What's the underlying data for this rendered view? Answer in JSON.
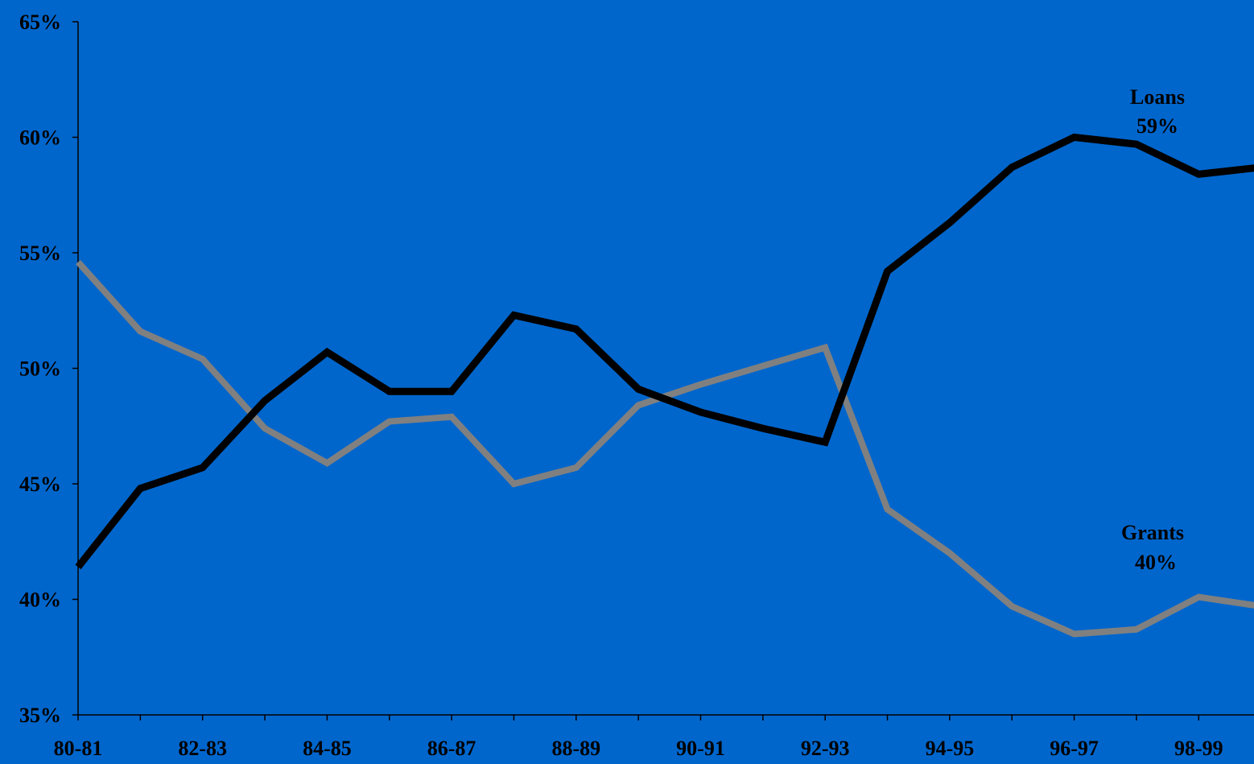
{
  "colors": {
    "background": "#0066CC",
    "axis": "#000000",
    "loans_line": "#000000",
    "grants_line": "#808080",
    "text": "#000000"
  },
  "chart_data": {
    "type": "line",
    "title": "",
    "xlabel": "",
    "ylabel": "",
    "x": [
      "80-81",
      "81-82",
      "82-83",
      "83-84",
      "84-85",
      "85-86",
      "86-87",
      "87-88",
      "88-89",
      "89-90",
      "90-91",
      "91-92",
      "92-93",
      "93-94",
      "94-95",
      "95-96",
      "96-97",
      "97-98",
      "98-99",
      "99-00"
    ],
    "x_tick_labels": [
      "80-81",
      "",
      "82-83",
      "",
      "84-85",
      "",
      "86-87",
      "",
      "88-89",
      "",
      "90-91",
      "",
      "92-93",
      "",
      "94-95",
      "",
      "96-97",
      "",
      "98-99",
      ""
    ],
    "y_tick_labels": [
      "35%",
      "40%",
      "45%",
      "50%",
      "55%",
      "60%",
      "65%"
    ],
    "y_ticks": [
      35,
      40,
      45,
      50,
      55,
      60,
      65
    ],
    "ylim": [
      35,
      65
    ],
    "grid": false,
    "legend": "none",
    "series": [
      {
        "key": "loans",
        "values": [
          41.4,
          44.8,
          45.7,
          48.6,
          50.7,
          49.0,
          49.0,
          52.3,
          51.7,
          49.1,
          48.1,
          47.4,
          46.8,
          54.2,
          56.3,
          58.7,
          60.0,
          59.7,
          58.4,
          58.7
        ],
        "annotation_name": "Loans",
        "annotation_value": "59%"
      },
      {
        "key": "grants",
        "values": [
          54.6,
          51.6,
          50.4,
          47.4,
          45.9,
          47.7,
          47.9,
          45.0,
          45.7,
          48.4,
          49.3,
          50.1,
          50.9,
          43.9,
          42.0,
          39.7,
          38.5,
          38.7,
          40.1,
          39.7
        ],
        "annotation_name": "Grants",
        "annotation_value": "40%"
      }
    ]
  }
}
